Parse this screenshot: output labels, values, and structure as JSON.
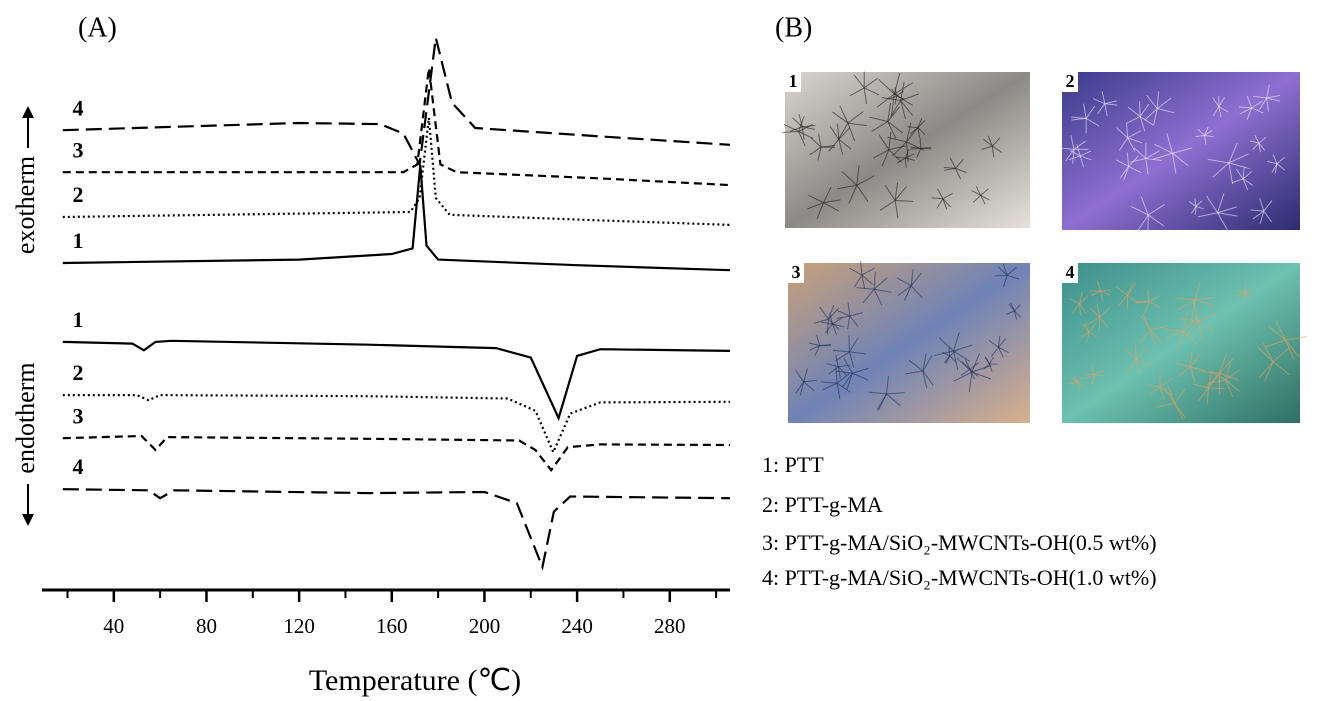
{
  "panels": {
    "a": "(A)",
    "b": "(B)"
  },
  "chart_data": {
    "type": "line",
    "xlabel": "Temperature (℃)",
    "ylabel_top": "exotherm",
    "ylabel_bottom": "endotherm",
    "xlim": [
      9,
      306
    ],
    "xticks": [
      40,
      80,
      120,
      160,
      200,
      240,
      280
    ],
    "x_minor_ticks": [
      20,
      60,
      100,
      140,
      180,
      220,
      260,
      300
    ],
    "ylim": [
      0,
      100
    ],
    "series": [
      {
        "name": "4",
        "color": "#000000",
        "dash": "longdash",
        "x": [
          18,
          120,
          155,
          165,
          172,
          179,
          186,
          196,
          250,
          306
        ],
        "values": [
          82.1,
          83.4,
          83.2,
          81.5,
          76,
          98.6,
          87,
          82.5,
          81,
          79.5
        ]
      },
      {
        "name": "3",
        "color": "#000000",
        "dash": "dashed",
        "x": [
          18,
          165,
          171,
          176,
          181,
          188,
          250,
          306
        ],
        "values": [
          74.6,
          74.6,
          76,
          93.2,
          76,
          74.6,
          73.5,
          72.3
        ]
      },
      {
        "name": "2",
        "color": "#000000",
        "dash": "dotted",
        "x": [
          18,
          168,
          172,
          176,
          179,
          185,
          250,
          306
        ],
        "values": [
          66.6,
          67.5,
          70,
          84.3,
          70,
          67,
          66,
          65.2
        ]
      },
      {
        "name": "1",
        "color": "#000000",
        "dash": "solid",
        "x": [
          18,
          120,
          160,
          169,
          172.3,
          175,
          180,
          240,
          306
        ],
        "values": [
          58.4,
          59,
          60,
          61,
          75.9,
          61.5,
          59,
          58,
          57.1
        ]
      },
      {
        "name": "1",
        "color": "#000000",
        "dash": "solid",
        "x": [
          18,
          48,
          53,
          58,
          65,
          150,
          205,
          220,
          232,
          240,
          250,
          306
        ],
        "values": [
          44.3,
          44,
          42.8,
          44.3,
          44.5,
          43.8,
          43.2,
          41.5,
          30.7,
          41.8,
          43,
          42.7
        ]
      },
      {
        "name": "2",
        "color": "#000000",
        "dash": "dotted",
        "x": [
          18,
          50,
          55,
          60,
          150,
          210,
          222,
          229.7,
          237,
          250,
          306
        ],
        "values": [
          34.8,
          34.8,
          33.9,
          34.8,
          34.6,
          34.2,
          32,
          24.6,
          31.5,
          33.5,
          33.6
        ]
      },
      {
        "name": "3",
        "color": "#000000",
        "dash": "dashed",
        "x": [
          18,
          52,
          58,
          63,
          150,
          215,
          222,
          228.8,
          236,
          250,
          306
        ],
        "values": [
          27.1,
          27.5,
          25,
          27.3,
          27,
          26.7,
          25,
          21.4,
          25.5,
          26,
          25.9
        ]
      },
      {
        "name": "4",
        "color": "#000000",
        "dash": "longdash",
        "x": [
          18,
          55,
          60,
          66,
          150,
          200,
          214,
          225,
          230,
          237,
          306
        ],
        "values": [
          18,
          17.8,
          16.4,
          17.8,
          17.3,
          17.5,
          15.5,
          4.1,
          14,
          16.7,
          16.4
        ]
      }
    ]
  },
  "micrographs": [
    "1",
    "2",
    "3",
    "4"
  ],
  "legend": [
    "1: PTT",
    "2: PTT-g-MA",
    "3: PTT-g-MA/SiO₂-MWCNTs-OH(0.5 wt%)",
    "4: PTT-g-MA/SiO₂-MWCNTs-OH(1.0 wt%)"
  ]
}
